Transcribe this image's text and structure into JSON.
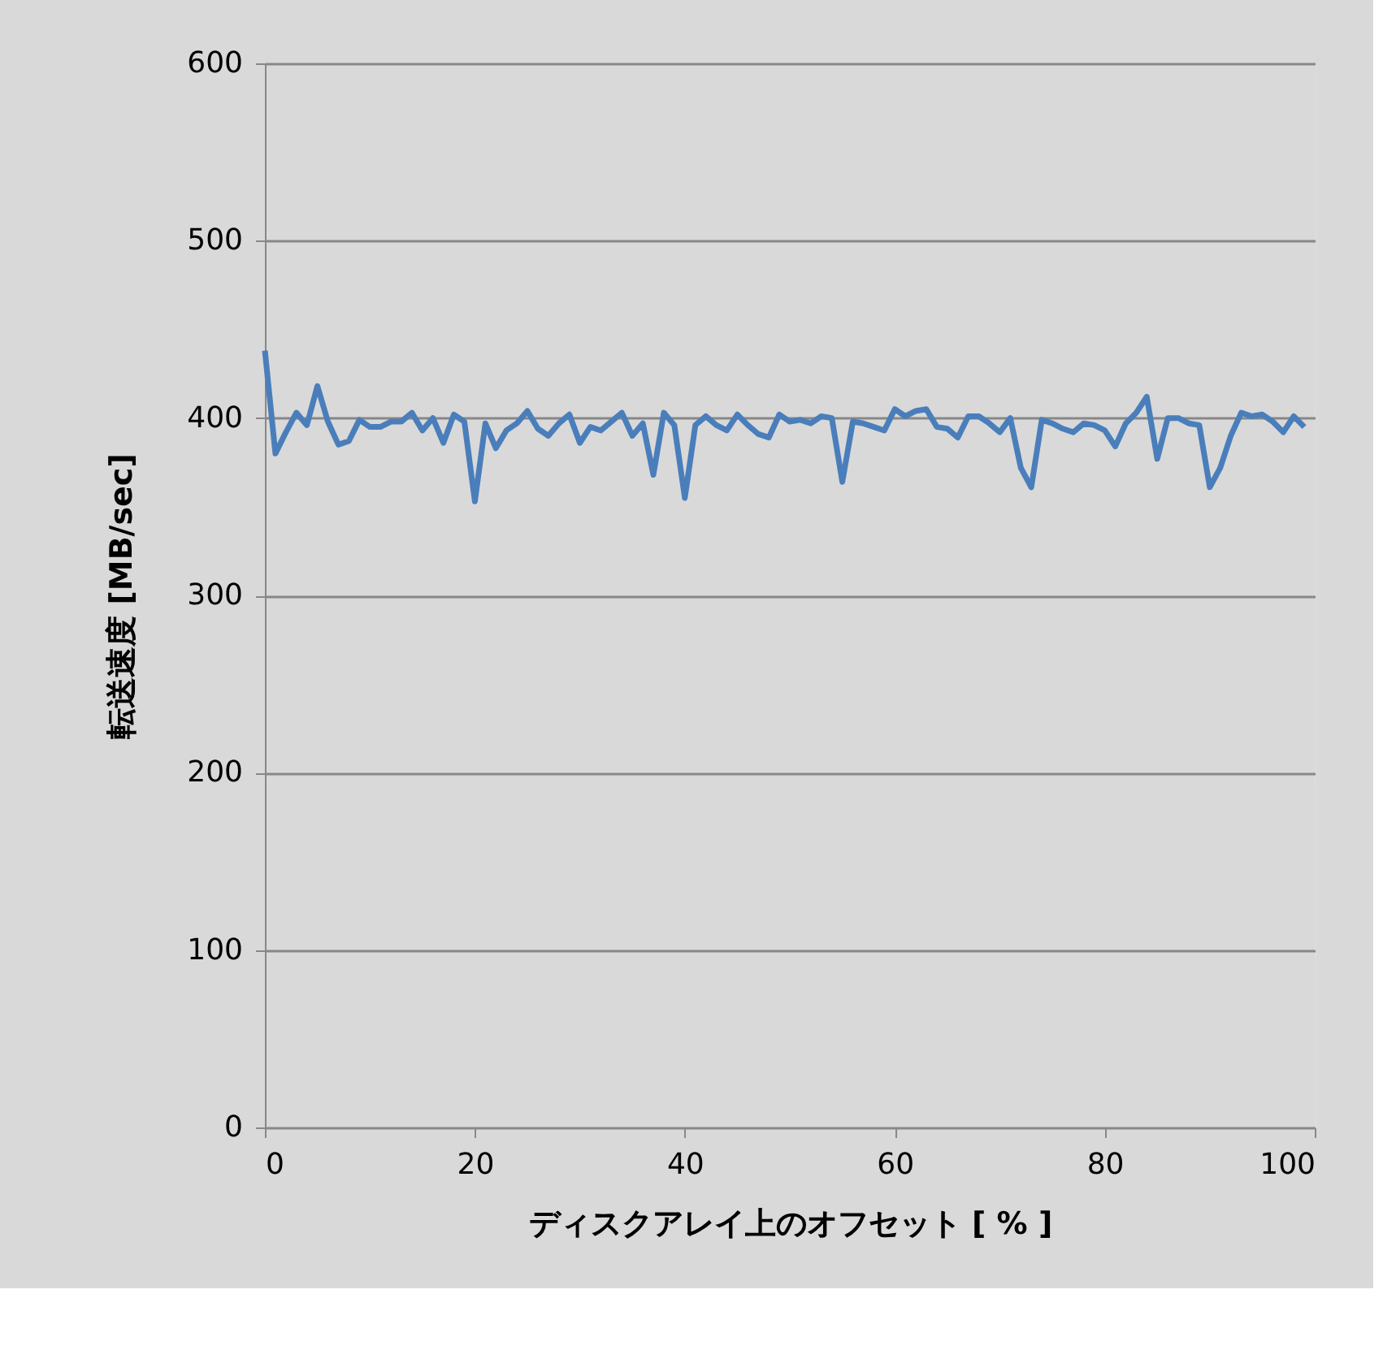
{
  "chart_data": {
    "type": "line",
    "xlabel": "ディスクアレイ上のオフセット [ % ]",
    "ylabel": "転送速度 [MB/sec]",
    "x": [
      0,
      1,
      2,
      3,
      4,
      5,
      6,
      7,
      8,
      9,
      10,
      11,
      12,
      13,
      14,
      15,
      16,
      17,
      18,
      19,
      20,
      21,
      22,
      23,
      24,
      25,
      26,
      27,
      28,
      29,
      30,
      31,
      32,
      33,
      34,
      35,
      36,
      37,
      38,
      39,
      40,
      41,
      42,
      43,
      44,
      45,
      46,
      47,
      48,
      49,
      50,
      51,
      52,
      53,
      54,
      55,
      56,
      57,
      58,
      59,
      60,
      61,
      62,
      63,
      64,
      65,
      66,
      67,
      68,
      69,
      70,
      71,
      72,
      73,
      74,
      75,
      76,
      77,
      78,
      79,
      80,
      81,
      82,
      83,
      84,
      85,
      86,
      87,
      88,
      89,
      90,
      91,
      92,
      93,
      94,
      95,
      96,
      97,
      98,
      99
    ],
    "series": [
      {
        "color": "#4a7ebb",
        "values": [
          438,
          380,
          392,
          403,
          396,
          418,
          398,
          385,
          387,
          399,
          395,
          395,
          398,
          398,
          403,
          393,
          400,
          386,
          402,
          398,
          353,
          397,
          383,
          393,
          397,
          404,
          394,
          390,
          397,
          402,
          386,
          395,
          393,
          398,
          403,
          390,
          397,
          368,
          403,
          396,
          355,
          396,
          401,
          396,
          393,
          402,
          396,
          391,
          389,
          402,
          398,
          399,
          397,
          401,
          400,
          364,
          398,
          397,
          395,
          393,
          405,
          401,
          404,
          405,
          395,
          394,
          389,
          401,
          401,
          397,
          392,
          400,
          372,
          361,
          399,
          397,
          394,
          392,
          397,
          396,
          393,
          384,
          397,
          403,
          412,
          377,
          400,
          400,
          397,
          396,
          361,
          372,
          390,
          403,
          401,
          402,
          398,
          392,
          401,
          395
        ]
      }
    ],
    "xlim": [
      0,
      100
    ],
    "xticks": [
      0,
      20,
      40,
      60,
      80,
      100
    ],
    "ylim": [
      0,
      600
    ],
    "yticks": [
      0,
      100,
      200,
      300,
      400,
      500,
      600
    ],
    "grid": "y",
    "marker": "none",
    "line_style": "solid"
  }
}
